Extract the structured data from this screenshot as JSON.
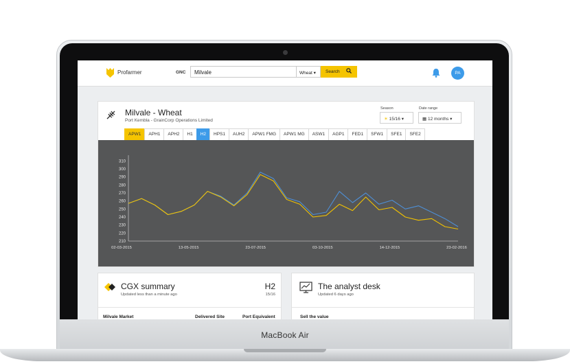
{
  "device": {
    "brand": "MacBook Air"
  },
  "topbar": {
    "brand_name": "Profarmer",
    "gnc_label": "GNC",
    "search_value": "Milvale",
    "crop_select": "Wheat",
    "search_button": "Search",
    "avatar_initials": "PA",
    "accent_color": "#f5c400",
    "avatar_color": "#3d9be9"
  },
  "chart_card": {
    "title": "Milvale - Wheat",
    "subtitle": "Port Kembla - GrainCorp Operations Limited",
    "season_label": "Season",
    "season_value": "15/16",
    "date_range_label": "Date range",
    "date_range_value": "12 months",
    "tabs": [
      "APW1",
      "APH1",
      "APH2",
      "H1",
      "H2",
      "HPS1",
      "AUH2",
      "APW1 FMG",
      "APW1 MG",
      "ASW1",
      "AGP1",
      "FED1",
      "SFW1",
      "SFE1",
      "SFE2"
    ],
    "active_tabs": {
      "yellow": "APW1",
      "blue": "H2"
    }
  },
  "chart_data": {
    "type": "line",
    "x_tick_labels": [
      "02-03-2015",
      "13-05-2015",
      "23-07-2015",
      "03-10-2015",
      "14-12-2015",
      "23-02-2016"
    ],
    "y_ticks": [
      210,
      220,
      230,
      240,
      250,
      260,
      270,
      280,
      290,
      300,
      310
    ],
    "ylim": [
      210,
      312
    ],
    "grid": false,
    "x": [
      0,
      4,
      8,
      12,
      16,
      20,
      24,
      28,
      32,
      36,
      40,
      44,
      48,
      52,
      56,
      60,
      64,
      68,
      72,
      76,
      80,
      84,
      88,
      92,
      96,
      100
    ],
    "series": [
      {
        "color": "#f2c200",
        "values": [
          257,
          263,
          255,
          243,
          247,
          255,
          272,
          265,
          254,
          268,
          293,
          285,
          262,
          256,
          240,
          242,
          256,
          248,
          265,
          249,
          252,
          240,
          236,
          238,
          228,
          225
        ]
      },
      {
        "color": "#4e8fd6",
        "values": [
          257,
          263,
          255,
          243,
          247,
          255,
          272,
          266,
          255,
          270,
          296,
          288,
          264,
          259,
          243,
          246,
          272,
          258,
          270,
          256,
          261,
          250,
          254,
          246,
          238,
          228
        ]
      }
    ]
  },
  "cgx": {
    "title": "CGX summary",
    "updated": "Updated less than a minute ago",
    "grade": "H2",
    "season": "15/16",
    "col1": "Milvale Market",
    "col2": "Delivered Site",
    "col3": "Port Equivalent"
  },
  "desk": {
    "title": "The analyst desk",
    "updated": "Updated 6 days ago",
    "section": "Sell the value"
  }
}
